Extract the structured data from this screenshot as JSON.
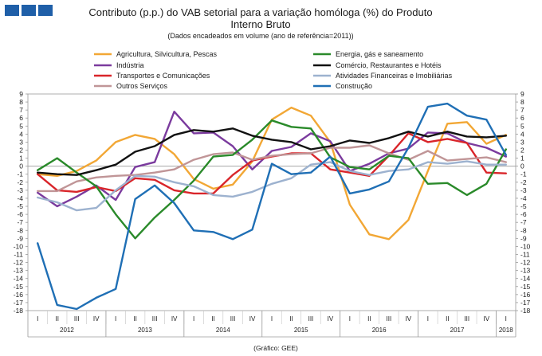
{
  "chart_data": {
    "type": "line",
    "title": "Contributo (p.p.) do VAB setorial para a variação homóloga (%) do Produto Interno Bruto",
    "title_lines": [
      "Contributo (p.p.) do VAB setorial para a variação homóloga (%) do Produto",
      "Interno Bruto"
    ],
    "subtitle": "(Dados encadeados em volume (ano de referência=2011))",
    "source": "(Gráfico: GEE)",
    "ylim": [
      -18,
      9
    ],
    "yticks": [
      9,
      8,
      7,
      6,
      5,
      4,
      3,
      2,
      1,
      0,
      -1,
      -2,
      -3,
      -4,
      -5,
      -6,
      -7,
      -8,
      -9,
      -10,
      -11,
      -12,
      -13,
      -14,
      -15,
      -16,
      -17,
      -18
    ],
    "quarters": [
      "I",
      "II",
      "III",
      "IV",
      "I",
      "II",
      "III",
      "IV",
      "I",
      "II",
      "III",
      "IV",
      "I",
      "II",
      "III",
      "IV",
      "I",
      "II",
      "III",
      "IV",
      "I",
      "II",
      "III",
      "IV",
      "I"
    ],
    "years": [
      {
        "label": "2012",
        "quarters": 4
      },
      {
        "label": "2013",
        "quarters": 4
      },
      {
        "label": "2014",
        "quarters": 4
      },
      {
        "label": "2015",
        "quarters": 4
      },
      {
        "label": "2016",
        "quarters": 4
      },
      {
        "label": "2017",
        "quarters": 4
      },
      {
        "label": "2018",
        "quarters": 1
      }
    ],
    "series": [
      {
        "name": "Agricultura, Silvicultura, Pescas",
        "color": "#f2a735",
        "values": [
          -1.0,
          -1.2,
          -0.6,
          0.7,
          3.0,
          3.9,
          3.4,
          1.5,
          -1.6,
          -2.8,
          -2.3,
          0.6,
          5.8,
          7.3,
          6.3,
          3.0,
          -4.8,
          -8.5,
          -9.1,
          -6.7,
          -0.6,
          5.3,
          5.5,
          2.8,
          3.9
        ]
      },
      {
        "name": "Indústria",
        "color": "#7b3b9e",
        "values": [
          -3.3,
          -5.0,
          -3.8,
          -2.4,
          -4.2,
          -0.1,
          0.5,
          6.8,
          4.1,
          4.2,
          2.5,
          -0.4,
          1.9,
          2.4,
          4.1,
          3.1,
          -0.6,
          0.3,
          1.6,
          2.2,
          4.2,
          4.1,
          2.9,
          2.3,
          1.2
        ]
      },
      {
        "name": "Transportes e Comunicações",
        "color": "#d9252a",
        "values": [
          -1.0,
          -3.0,
          -3.2,
          -2.6,
          -3.1,
          -1.5,
          -1.7,
          -3.0,
          -3.4,
          -3.4,
          -1.1,
          0.7,
          1.2,
          1.6,
          1.6,
          -0.4,
          -0.8,
          -1.2,
          1.3,
          4.1,
          3.0,
          3.4,
          2.9,
          -0.8,
          -0.9
        ]
      },
      {
        "name": "Outros Serviços",
        "color": "#c09597",
        "values": [
          -3.1,
          -3.1,
          -1.9,
          -1.4,
          -1.2,
          -1.1,
          -0.8,
          -0.4,
          0.8,
          1.5,
          1.7,
          0.8,
          1.3,
          1.5,
          1.6,
          2.3,
          2.3,
          2.6,
          1.6,
          0.8,
          1.9,
          0.7,
          0.9,
          1.1,
          0.5
        ]
      },
      {
        "name": "Energia, gás e saneamento",
        "color": "#2a8a2a",
        "values": [
          -0.5,
          1.0,
          -0.8,
          -2.5,
          -6.0,
          -9.0,
          -6.4,
          -4.2,
          -1.8,
          1.2,
          1.4,
          3.3,
          5.7,
          4.9,
          4.7,
          1.1,
          -0.1,
          -0.4,
          1.3,
          1.0,
          -2.2,
          -2.1,
          -3.6,
          -2.2,
          2.1
        ]
      },
      {
        "name": "Comércio, Restaurantes e Hotéis",
        "color": "#111111",
        "values": [
          -0.8,
          -1.0,
          -1.1,
          -0.5,
          0.2,
          1.8,
          2.5,
          3.9,
          4.5,
          4.3,
          4.7,
          3.8,
          3.3,
          3.0,
          2.1,
          2.5,
          3.2,
          2.9,
          3.5,
          4.3,
          3.7,
          4.3,
          3.7,
          3.6,
          3.8
        ]
      },
      {
        "name": "Atividades Financeiras e Imobiliárias",
        "color": "#9db2cf",
        "values": [
          -3.9,
          -4.5,
          -5.5,
          -5.2,
          -3.0,
          -1.2,
          -1.3,
          -2.0,
          -2.5,
          -3.6,
          -3.8,
          -3.2,
          -2.2,
          -1.5,
          0.2,
          0.5,
          -0.6,
          -1.1,
          -0.6,
          -0.4,
          0.5,
          0.3,
          0.6,
          0.2,
          0.2
        ]
      },
      {
        "name": "Construção",
        "color": "#1f6fb5",
        "values": [
          -9.6,
          -17.3,
          -17.8,
          -16.4,
          -15.3,
          -4.1,
          -2.4,
          -4.6,
          -8.0,
          -8.2,
          -9.1,
          -7.9,
          0.3,
          -1.0,
          -0.8,
          1.2,
          -3.4,
          -2.9,
          -1.9,
          2.3,
          7.4,
          7.8,
          6.3,
          5.8,
          1.4
        ]
      }
    ]
  }
}
